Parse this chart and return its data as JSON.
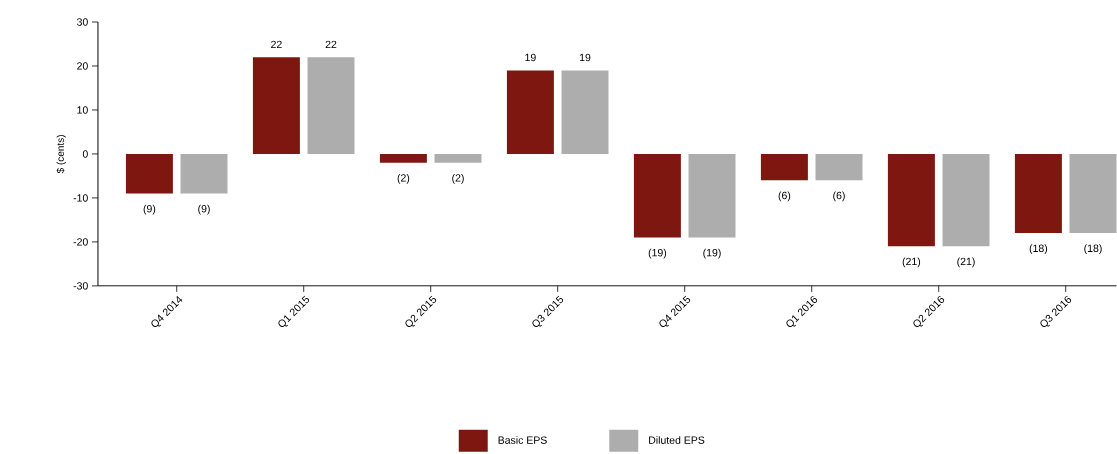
{
  "chart_data": {
    "type": "bar",
    "ylabel": "$ (cents)",
    "categories": [
      "Q4 2014",
      "Q1 2015",
      "Q2 2015",
      "Q3 2015",
      "Q4 2015",
      "Q1 2016",
      "Q2 2016",
      "Q3 2016"
    ],
    "series": [
      {
        "name": "Basic EPS",
        "color": "#7f1711",
        "values": [
          -9,
          22,
          -2,
          19,
          -19,
          -6,
          -21,
          -18
        ],
        "value_labels": [
          "(9)",
          "22",
          "(2)",
          "19",
          "(19)",
          "(6)",
          "(21)",
          "(18)"
        ]
      },
      {
        "name": "Diluted EPS",
        "color": "#adadad",
        "values": [
          -9,
          22,
          -2,
          19,
          -19,
          -6,
          -21,
          -18
        ],
        "value_labels": [
          "(9)",
          "22",
          "(2)",
          "19",
          "(19)",
          "(6)",
          "(21)",
          "(18)"
        ]
      }
    ],
    "ylim": [
      -30,
      30
    ],
    "yticks": [
      -30,
      -20,
      -10,
      0,
      10,
      20,
      30
    ],
    "legend": "bottom"
  }
}
